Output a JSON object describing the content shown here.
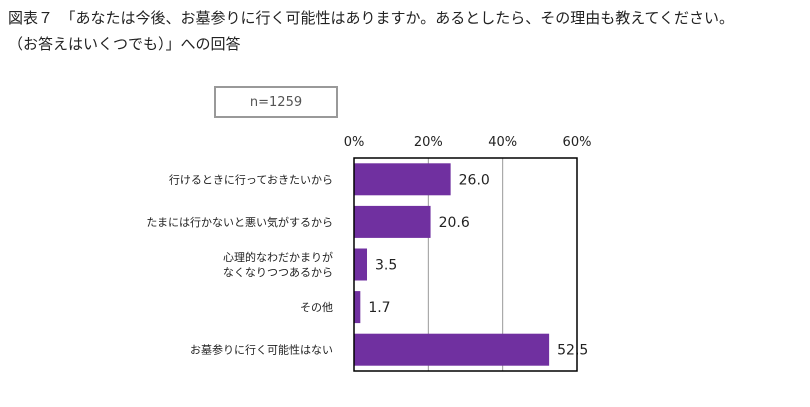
{
  "page": {
    "title_line1": "図表７　「あなたは今後、お墓参りに行く可能性はありますか。あるとしたら、その理由も教えてください。",
    "title_line2": "（お答えはいくつでも）」への回答",
    "sample_label": "n=1259"
  },
  "chart_data": {
    "type": "bar",
    "orientation": "horizontal",
    "categories": [
      [
        "行けるときに行っておきたいから"
      ],
      [
        "たまには行かないと悪い気がするから"
      ],
      [
        "心理的なわだかまりが",
        "なくなりつつあるから"
      ],
      [
        "その他"
      ],
      [
        "お墓参りに行く可能性はない"
      ]
    ],
    "values": [
      26.0,
      20.6,
      3.5,
      1.7,
      52.5
    ],
    "value_labels": [
      "26.0",
      "20.6",
      "3.5",
      "1.7",
      "52.5"
    ],
    "xlim": [
      0,
      60
    ],
    "ticks": [
      "0%",
      "20%",
      "40%",
      "60%"
    ],
    "tick_values": [
      0,
      20,
      40,
      60
    ],
    "grid": true,
    "bar_color": "#7030a0",
    "title": "",
    "xlabel": "",
    "ylabel": ""
  }
}
